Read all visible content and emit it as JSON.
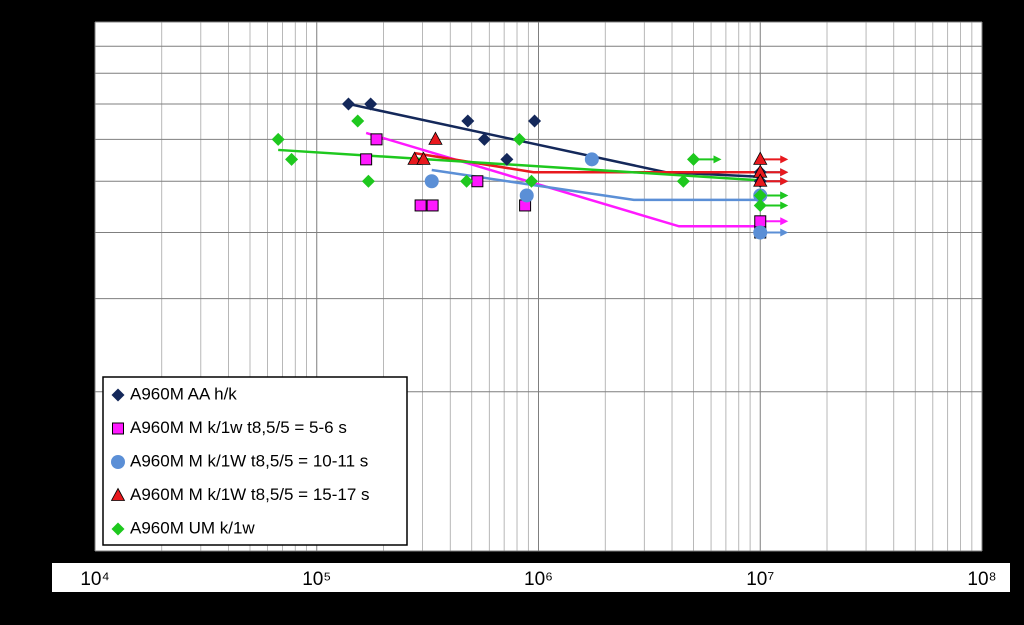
{
  "chart_data": {
    "type": "scatter",
    "xlog": true,
    "ylog": true,
    "grid": true,
    "minor_grid": true,
    "xlim": [
      10000,
      100000000
    ],
    "xticks": [
      {
        "value": 10000,
        "label": "10⁴"
      },
      {
        "value": 100000,
        "label": "10⁵"
      },
      {
        "value": 1000000,
        "label": "10⁶"
      },
      {
        "value": 10000000,
        "label": "10⁷"
      },
      {
        "value": 100000000,
        "label": "10⁸"
      }
    ],
    "ylim": [
      100,
      1000
    ],
    "yticks": [
      100,
      200,
      300,
      400,
      500,
      600,
      700,
      800,
      900,
      1000
    ],
    "legend": "lower left",
    "series": [
      {
        "name": "A960M AA h/k",
        "color": "#14285a",
        "marker": "diamond",
        "x": [
          139000,
          175000,
          480000,
          570000,
          720000,
          960000,
          10000000,
          10000000
        ],
        "values": [
          700,
          700,
          650,
          600,
          550,
          650,
          520,
          500
        ],
        "runout": [
          false,
          false,
          false,
          false,
          false,
          false,
          true,
          true
        ],
        "fit_x": [
          139000,
          3750000,
          10000000
        ],
        "fit_y": [
          700,
          520,
          510
        ]
      },
      {
        "name": "A960M M k/1w t8,5/5 = 5-6 s",
        "color": "#ff19ff",
        "marker": "square",
        "x": [
          186000,
          167000,
          294000,
          333000,
          530000,
          870000,
          10000000,
          10000000
        ],
        "values": [
          600,
          550,
          450,
          450,
          500,
          450,
          420,
          400
        ],
        "runout": [
          false,
          false,
          false,
          false,
          false,
          false,
          true,
          false
        ],
        "fit_x": [
          167000,
          4300000,
          10000000
        ],
        "fit_y": [
          617,
          411,
          411
        ]
      },
      {
        "name": "A960M M k/1W t8,5/5 = 10-11 s",
        "color": "#5b8fd6",
        "marker": "circle",
        "x": [
          330000,
          885000,
          1740000,
          10000000,
          10000000
        ],
        "values": [
          500,
          470,
          550,
          470,
          400
        ],
        "runout": [
          false,
          false,
          false,
          true,
          true
        ],
        "fit_x": [
          330000,
          2690000,
          10000000
        ],
        "fit_y": [
          525,
          461,
          461
        ]
      },
      {
        "name": "A960M M k/1W t8,5/5 = 15-17 s",
        "color": "#e8191e",
        "marker": "triangle",
        "x": [
          343000,
          276000,
          303000,
          10000000,
          10000000,
          10000000
        ],
        "values": [
          600,
          550,
          550,
          550,
          520,
          500
        ],
        "runout": [
          false,
          false,
          false,
          true,
          true,
          true
        ],
        "fit_x": [
          276000,
          950000,
          10000000
        ],
        "fit_y": [
          565,
          520,
          520
        ]
      },
      {
        "name": "A960M UM k/1w",
        "color": "#1ec81e",
        "marker": "diamond",
        "x": [
          67000,
          77000,
          153000,
          171000,
          474000,
          820000,
          930000,
          4500000,
          5000000,
          10000000,
          10000000
        ],
        "values": [
          600,
          550,
          650,
          500,
          500,
          600,
          500,
          500,
          550,
          470,
          450
        ],
        "runout": [
          false,
          false,
          false,
          false,
          false,
          false,
          false,
          false,
          true,
          true,
          true
        ],
        "fit_x": [
          67000,
          10000000
        ],
        "fit_y": [
          573,
          502
        ]
      }
    ]
  }
}
